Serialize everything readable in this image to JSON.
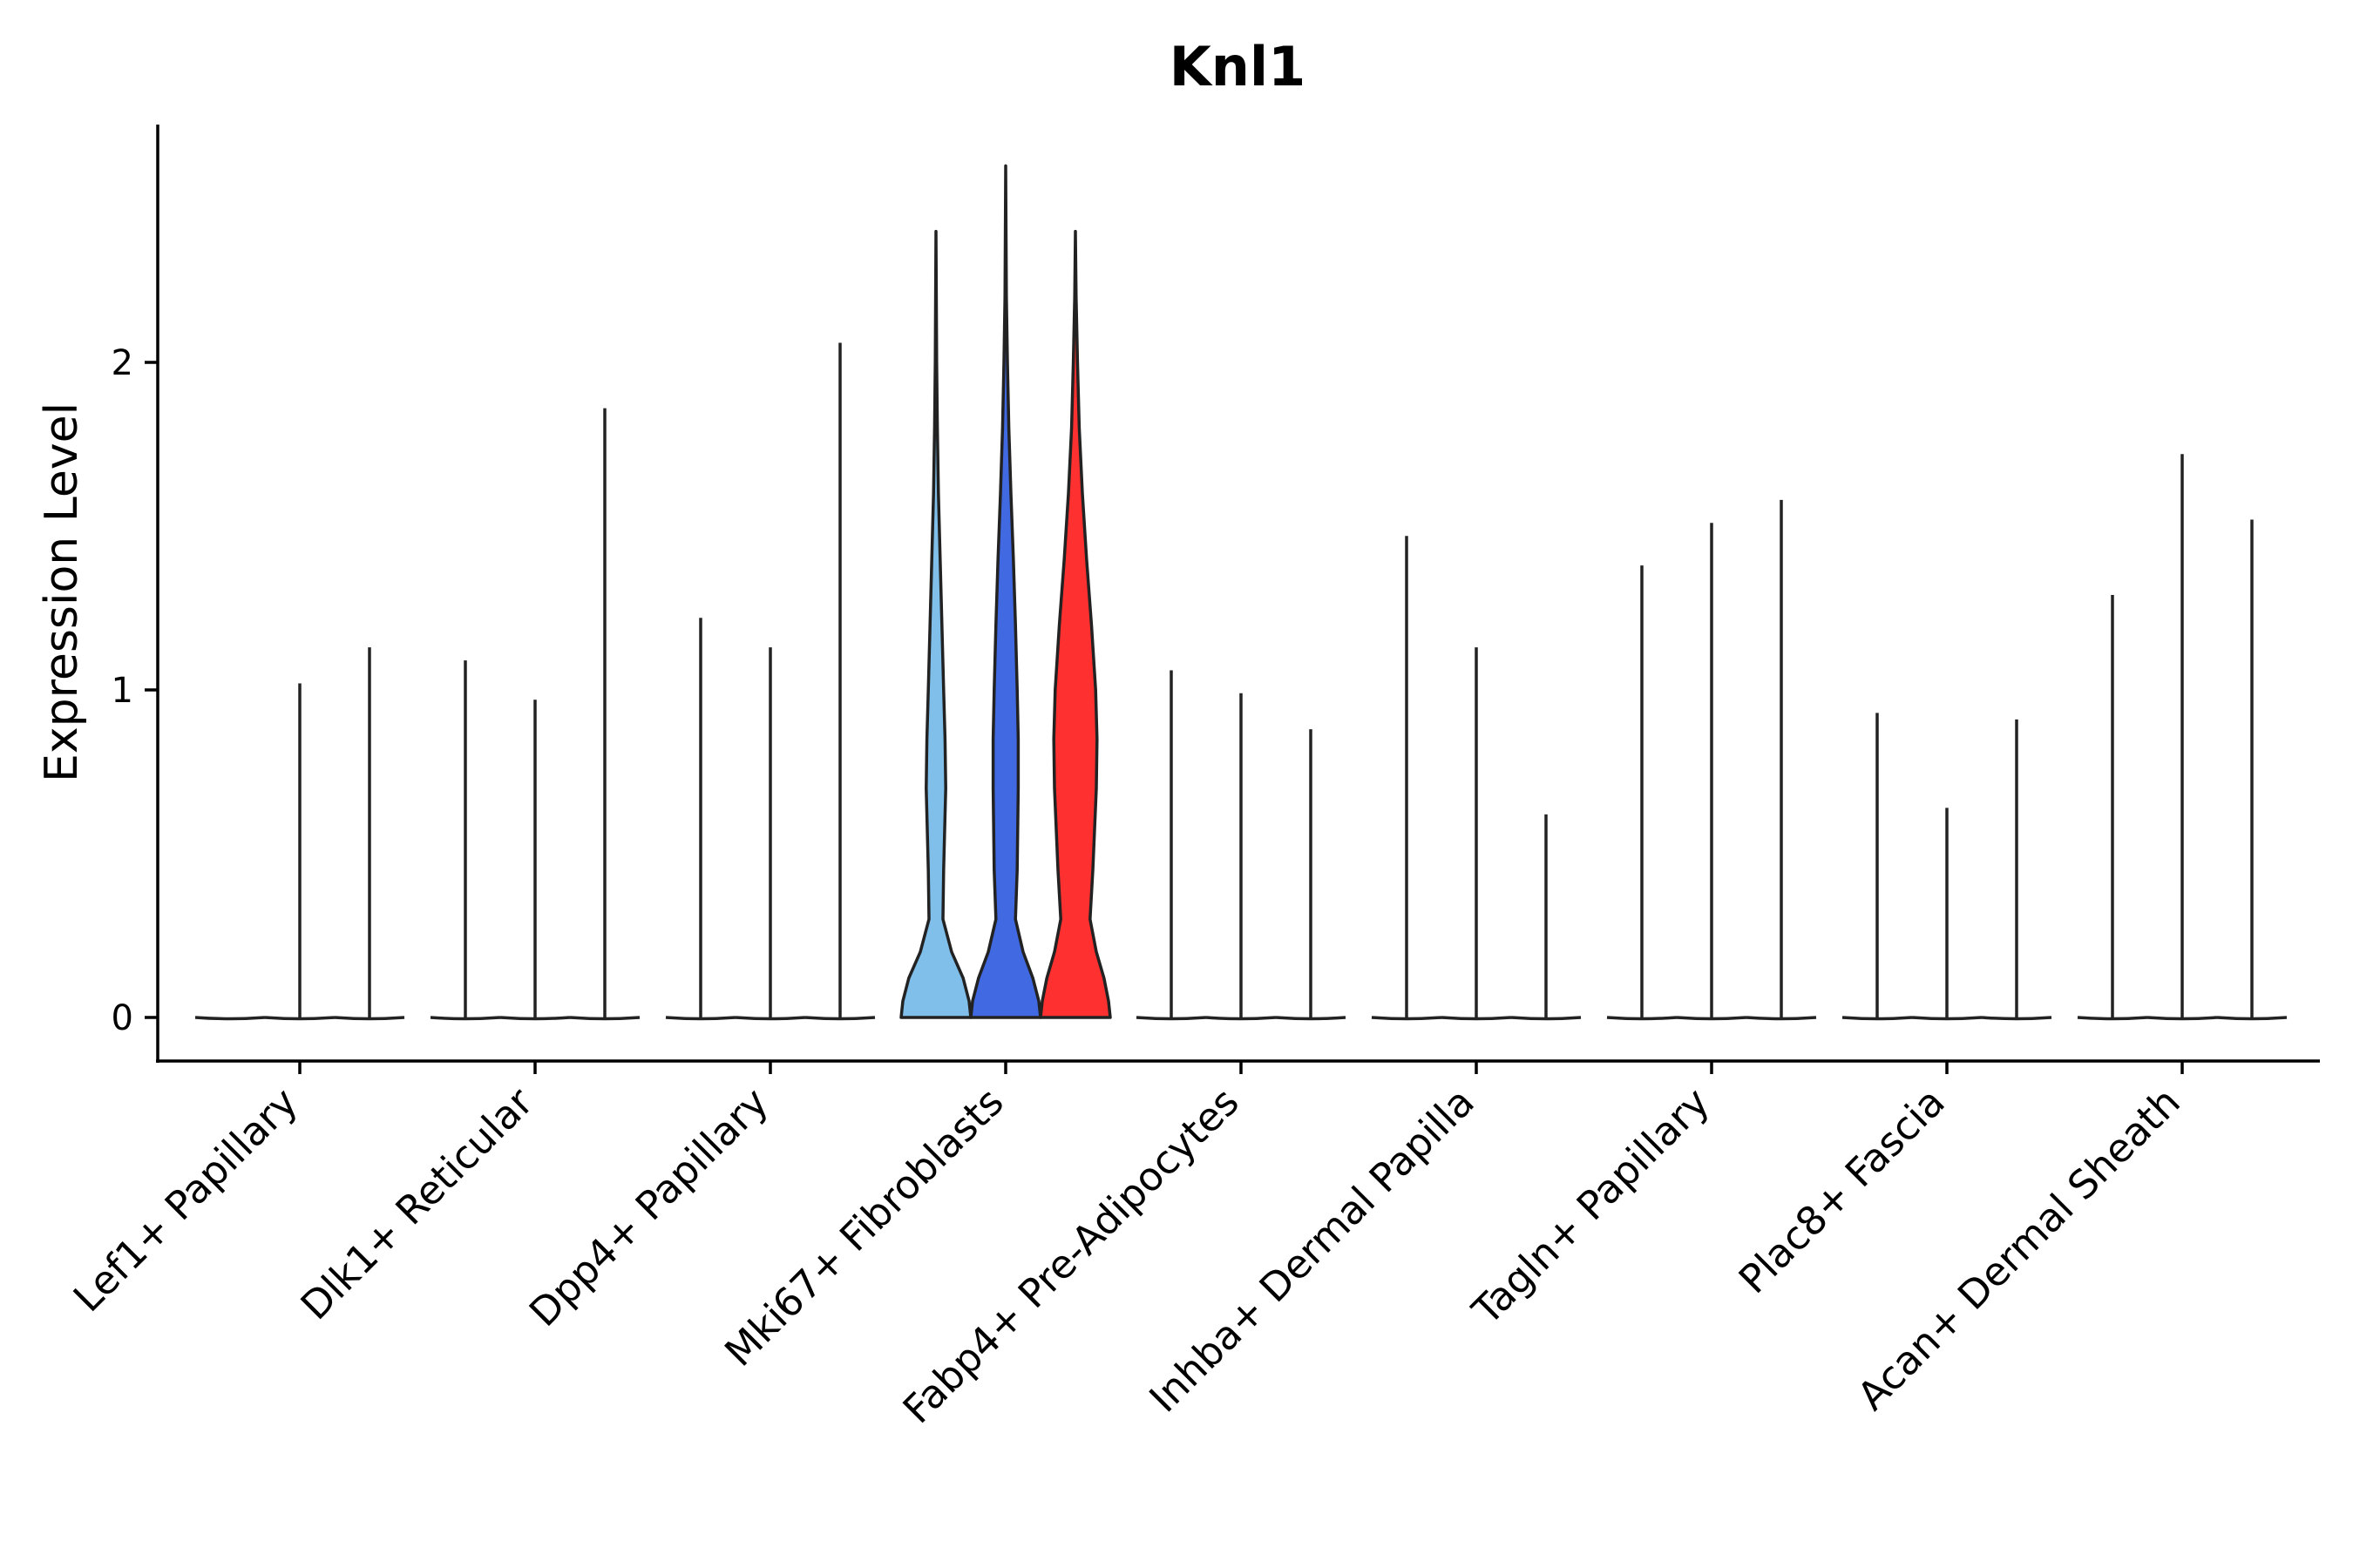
{
  "chart_data": {
    "type": "violin",
    "title": "Knl1",
    "xlabel": "",
    "ylabel": "Expression Level",
    "ylim": [
      -0.13,
      2.73
    ],
    "yticks": [
      0,
      1,
      2
    ],
    "grid": false,
    "legend": "none",
    "categories": [
      "Lef1+ Papillary",
      "Dlk1+ Reticular",
      "Dpp4+ Papillary",
      "Mki67+ Fibroblasts",
      "Fabp4+ Pre-Adipocytes",
      "Inhba+ Dermal Papilla",
      "Tagln+ Papillary",
      "Plac8+ Fascia",
      "Acan+ Dermal Sheath"
    ],
    "groups": [
      {
        "category": "Lef1+ Papillary",
        "violins": [
          {
            "max": 0.0,
            "color": "#ffffff"
          },
          {
            "max": 1.02,
            "color": "#ffffff"
          },
          {
            "max": 1.13,
            "color": "#ffffff"
          }
        ]
      },
      {
        "category": "Dlk1+ Reticular",
        "violins": [
          {
            "max": 1.09,
            "color": "#ffffff"
          },
          {
            "max": 0.97,
            "color": "#ffffff"
          },
          {
            "max": 1.86,
            "color": "#ffffff"
          }
        ]
      },
      {
        "category": "Dpp4+ Papillary",
        "violins": [
          {
            "max": 1.22,
            "color": "#ffffff"
          },
          {
            "max": 1.13,
            "color": "#ffffff"
          },
          {
            "max": 2.06,
            "color": "#ffffff"
          }
        ]
      },
      {
        "category": "Mki67+ Fibroblasts",
        "violins": [
          {
            "max": 2.33,
            "color": "#7fbfea"
          },
          {
            "max": 2.6,
            "color": "#4169e1"
          },
          {
            "max": 2.34,
            "color": "#ff3030"
          }
        ]
      },
      {
        "category": "Fabp4+ Pre-Adipocytes",
        "violins": [
          {
            "max": 1.06,
            "color": "#ffffff"
          },
          {
            "max": 0.99,
            "color": "#ffffff"
          },
          {
            "max": 0.88,
            "color": "#ffffff"
          }
        ]
      },
      {
        "category": "Inhba+ Dermal Papilla",
        "violins": [
          {
            "max": 1.47,
            "color": "#ffffff"
          },
          {
            "max": 1.13,
            "color": "#ffffff"
          },
          {
            "max": 0.62,
            "color": "#ffffff"
          }
        ]
      },
      {
        "category": "Tagln+ Papillary",
        "violins": [
          {
            "max": 1.38,
            "color": "#ffffff"
          },
          {
            "max": 1.51,
            "color": "#ffffff"
          },
          {
            "max": 1.58,
            "color": "#ffffff"
          }
        ]
      },
      {
        "category": "Plac8+ Fascia",
        "violins": [
          {
            "max": 0.93,
            "color": "#ffffff"
          },
          {
            "max": 0.64,
            "color": "#ffffff"
          },
          {
            "max": 0.91,
            "color": "#ffffff"
          }
        ]
      },
      {
        "category": "Acan+ Dermal Sheath",
        "violins": [
          {
            "max": 1.29,
            "color": "#ffffff"
          },
          {
            "max": 1.72,
            "color": "#ffffff"
          },
          {
            "max": 1.52,
            "color": "#ffffff"
          }
        ]
      }
    ],
    "density_profiles": {
      "Mki67+ Fibroblasts": [
        {
          "level": 0.0,
          "widths": [
            1.0,
            1.0,
            1.0
          ]
        },
        {
          "level": 0.05,
          "widths": [
            0.95,
            0.95,
            0.95
          ]
        },
        {
          "level": 0.12,
          "widths": [
            0.78,
            0.78,
            0.82
          ]
        },
        {
          "level": 0.2,
          "widths": [
            0.45,
            0.5,
            0.6
          ]
        },
        {
          "level": 0.3,
          "widths": [
            0.2,
            0.28,
            0.42
          ]
        },
        {
          "level": 0.45,
          "widths": [
            0.22,
            0.33,
            0.5
          ]
        },
        {
          "level": 0.7,
          "widths": [
            0.28,
            0.36,
            0.6
          ]
        },
        {
          "level": 0.85,
          "widths": [
            0.26,
            0.36,
            0.62
          ]
        },
        {
          "level": 1.0,
          "widths": [
            0.22,
            0.33,
            0.58
          ]
        },
        {
          "level": 1.2,
          "widths": [
            0.17,
            0.28,
            0.46
          ]
        },
        {
          "level": 1.4,
          "widths": [
            0.12,
            0.22,
            0.32
          ]
        },
        {
          "level": 1.6,
          "widths": [
            0.07,
            0.15,
            0.2
          ]
        },
        {
          "level": 1.8,
          "widths": [
            0.04,
            0.09,
            0.11
          ]
        },
        {
          "level": 2.0,
          "widths": [
            0.02,
            0.05,
            0.06
          ]
        },
        {
          "level": 2.2,
          "widths": [
            0.01,
            0.02,
            0.02
          ]
        },
        {
          "level": 2.4,
          "widths": [
            0.0,
            0.01,
            0.0
          ]
        }
      ]
    }
  }
}
